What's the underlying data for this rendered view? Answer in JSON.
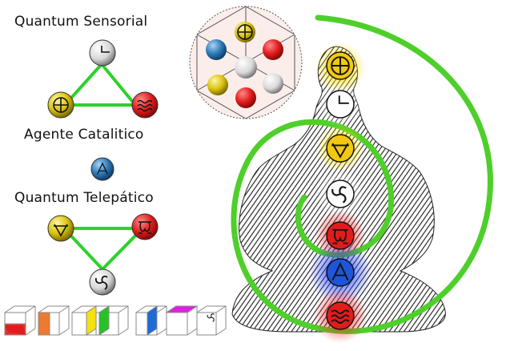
{
  "headings": {
    "sensorial": "Quantum Sensorial",
    "catalitico": "Agente Catalitico",
    "telepatico": "Quantum Telepático"
  },
  "colors": {
    "spiral": "#4ecf2a",
    "triangle": "#2bd22b",
    "red": "#e21b1b",
    "yellow": "#f5cb10",
    "blue": "#1f55d8",
    "white": "#f5f5f5",
    "olive": "#c9b400",
    "orange": "#ee7a2f",
    "green": "#27c227",
    "magenta": "#e21ee2"
  },
  "symbols": {
    "sensorial_top": "square-corner-icon",
    "sensorial_left": "cross-circle-icon",
    "sensorial_right": "waves-icon",
    "catalitico": "triangle-a-icon",
    "telepatico_left": "v-icon",
    "telepatico_right": "omega-icon",
    "telepatico_bottom": "triskelion-icon"
  },
  "chakras": [
    "cross-circle-icon",
    "square-corner-icon",
    "v-icon",
    "triskelion-icon",
    "omega-icon",
    "triangle-a-icon",
    "waves-icon"
  ],
  "cubes": [
    "red",
    "orange",
    "yellow-green",
    "blue",
    "magenta",
    "white-symbol"
  ]
}
